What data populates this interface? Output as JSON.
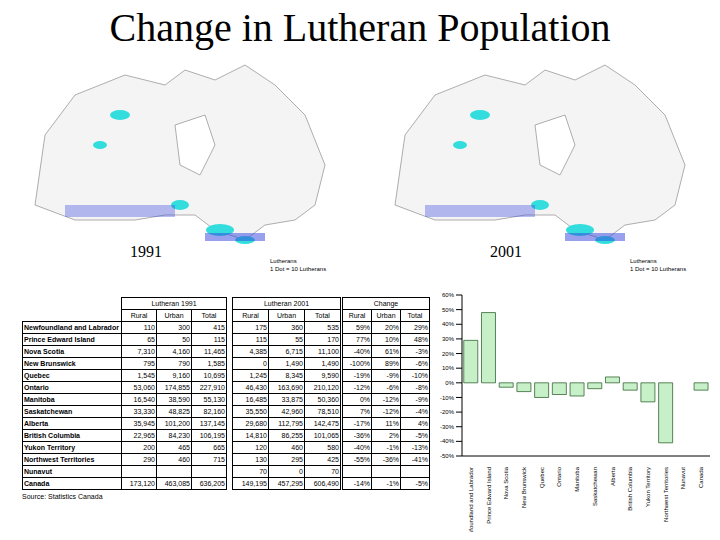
{
  "title": "Change in Lutheran Population",
  "maps": [
    {
      "label": "1991",
      "legend_title": "Lutherans",
      "legend_text": "1 Dot = 10 Lutherans"
    },
    {
      "label": "2001",
      "legend_title": "Lutherans",
      "legend_text": "1 Dot = 10 Lutherans"
    }
  ],
  "table": {
    "groups": [
      {
        "title": "Lutheran 1991",
        "columns": [
          "Rural",
          "Urban",
          "Total"
        ]
      },
      {
        "title": "Lutheran 2001",
        "columns": [
          "Rural",
          "Urban",
          "Total"
        ]
      },
      {
        "title": "Change",
        "columns": [
          "Rural",
          "Urban",
          "Total"
        ]
      }
    ],
    "rows": [
      {
        "name": "Newfoundland and Labrador",
        "cells": [
          [
            "110",
            "300",
            "415"
          ],
          [
            "175",
            "360",
            "535"
          ],
          [
            "59%",
            "20%",
            "29%"
          ]
        ]
      },
      {
        "name": "Prince Edward Island",
        "cells": [
          [
            "65",
            "50",
            "115"
          ],
          [
            "115",
            "55",
            "170"
          ],
          [
            "77%",
            "10%",
            "48%"
          ]
        ]
      },
      {
        "name": "Nova Scotia",
        "cells": [
          [
            "7,310",
            "4,160",
            "11,465"
          ],
          [
            "4,385",
            "6,715",
            "11,100"
          ],
          [
            "-40%",
            "61%",
            "-3%"
          ]
        ]
      },
      {
        "name": "New Brunswick",
        "cells": [
          [
            "795",
            "790",
            "1,585"
          ],
          [
            "0",
            "1,490",
            "1,490"
          ],
          [
            "-100%",
            "89%",
            "-6%"
          ]
        ]
      },
      {
        "name": "Quebec",
        "cells": [
          [
            "1,545",
            "9,160",
            "10,695"
          ],
          [
            "1,245",
            "8,345",
            "9,590"
          ],
          [
            "-19%",
            "-9%",
            "-10%"
          ]
        ]
      },
      {
        "name": "Ontario",
        "cells": [
          [
            "53,060",
            "174,855",
            "227,910"
          ],
          [
            "46,430",
            "163,690",
            "210,120"
          ],
          [
            "-12%",
            "-6%",
            "-8%"
          ]
        ]
      },
      {
        "name": "Manitoba",
        "cells": [
          [
            "16,540",
            "38,590",
            "55,130"
          ],
          [
            "16,485",
            "33,875",
            "50,360"
          ],
          [
            "0%",
            "-12%",
            "-9%"
          ]
        ]
      },
      {
        "name": "Saskatchewan",
        "cells": [
          [
            "33,330",
            "48,825",
            "82,160"
          ],
          [
            "35,550",
            "42,960",
            "78,510"
          ],
          [
            "7%",
            "-12%",
            "-4%"
          ]
        ]
      },
      {
        "name": "Alberta",
        "cells": [
          [
            "35,945",
            "101,200",
            "137,145"
          ],
          [
            "29,680",
            "112,795",
            "142,475"
          ],
          [
            "-17%",
            "11%",
            "4%"
          ]
        ]
      },
      {
        "name": "British Columbia",
        "cells": [
          [
            "22,965",
            "84,230",
            "106,195"
          ],
          [
            "14,810",
            "86,255",
            "101,065"
          ],
          [
            "-36%",
            "2%",
            "-5%"
          ]
        ]
      },
      {
        "name": "Yukon Territory",
        "cells": [
          [
            "200",
            "465",
            "665"
          ],
          [
            "120",
            "460",
            "580"
          ],
          [
            "-40%",
            "-1%",
            "-13%"
          ]
        ]
      },
      {
        "name": "Northwest Territories",
        "cells": [
          [
            "290",
            "460",
            "715"
          ],
          [
            "130",
            "295",
            "425"
          ],
          [
            "-55%",
            "-36%",
            "-41%"
          ]
        ]
      },
      {
        "name": "Nunavut",
        "cells": [
          [
            null,
            null,
            null
          ],
          [
            "70",
            "0",
            "70"
          ],
          [
            null,
            null,
            null
          ]
        ]
      },
      {
        "name": "Canada",
        "cells": [
          [
            "173,120",
            "463,085",
            "636,205"
          ],
          [
            "149,195",
            "457,295",
            "606,490"
          ],
          [
            "-14%",
            "-1%",
            "-5%"
          ]
        ]
      }
    ],
    "source": "Source: Statistics Canada"
  },
  "chart_data": {
    "type": "bar",
    "categories": [
      "Newfoundland and Labrador",
      "Prince Edward Island",
      "Nova Scotia",
      "New Brunswick",
      "Quebec",
      "Ontario",
      "Manitoba",
      "Saskatchewan",
      "Alberta",
      "British Columbia",
      "Yukon Territory",
      "Northwest Territories",
      "Nunavut",
      "Canada"
    ],
    "values": [
      29,
      48,
      -3,
      -6,
      -10,
      -8,
      -9,
      -4,
      4,
      -5,
      -13,
      -41,
      null,
      -5
    ],
    "color": "#c8f0c8",
    "grid": false,
    "ylim": [
      -50,
      60
    ],
    "yticks": [
      {
        "value": -50,
        "label": "-50%"
      },
      {
        "value": -40,
        "label": "-40%"
      },
      {
        "value": -30,
        "label": "-30%"
      },
      {
        "value": -20,
        "label": "-20%"
      },
      {
        "value": -10,
        "label": "-10%"
      },
      {
        "value": 0,
        "label": "0%"
      },
      {
        "value": 10,
        "label": "10%"
      },
      {
        "value": 20,
        "label": "20%"
      },
      {
        "value": 30,
        "label": "30%"
      },
      {
        "value": 40,
        "label": "40%"
      },
      {
        "value": 50,
        "label": "50%"
      },
      {
        "value": 60,
        "label": "60%"
      }
    ]
  }
}
